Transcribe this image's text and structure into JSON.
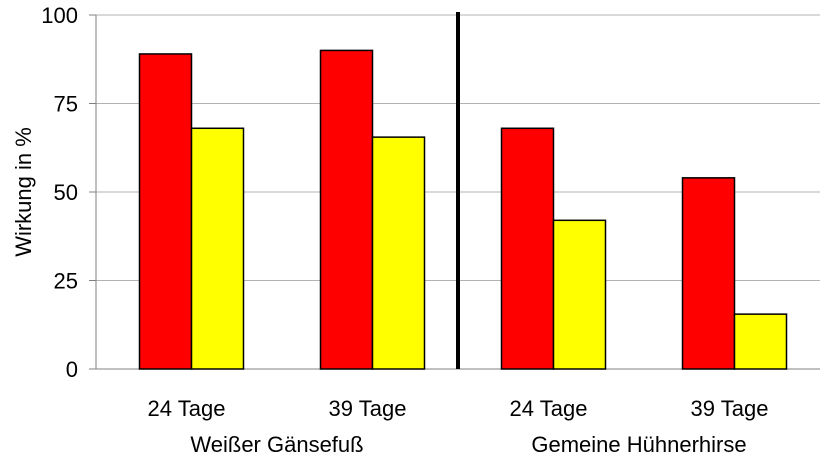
{
  "chart_data": {
    "type": "bar",
    "ylabel": "Wirkung in %",
    "ylim": [
      0,
      100
    ],
    "yticks": [
      0,
      25,
      50,
      75,
      100
    ],
    "grid": true,
    "groups": [
      {
        "label": "Weißer Gänsefuß",
        "categories": [
          {
            "label": "24 Tage",
            "values": [
              89,
              68
            ]
          },
          {
            "label": "39 Tage",
            "values": [
              90,
              65.5
            ]
          }
        ]
      },
      {
        "label": "Gemeine Hühnerhirse",
        "categories": [
          {
            "label": "24 Tage",
            "values": [
              68,
              42
            ]
          },
          {
            "label": "39 Tage",
            "values": [
              54,
              15.5
            ]
          }
        ]
      }
    ],
    "series_colors": [
      "#ff0000",
      "#ffff00"
    ],
    "grid_color": "#b3b3b3",
    "divider_color": "#000000"
  }
}
